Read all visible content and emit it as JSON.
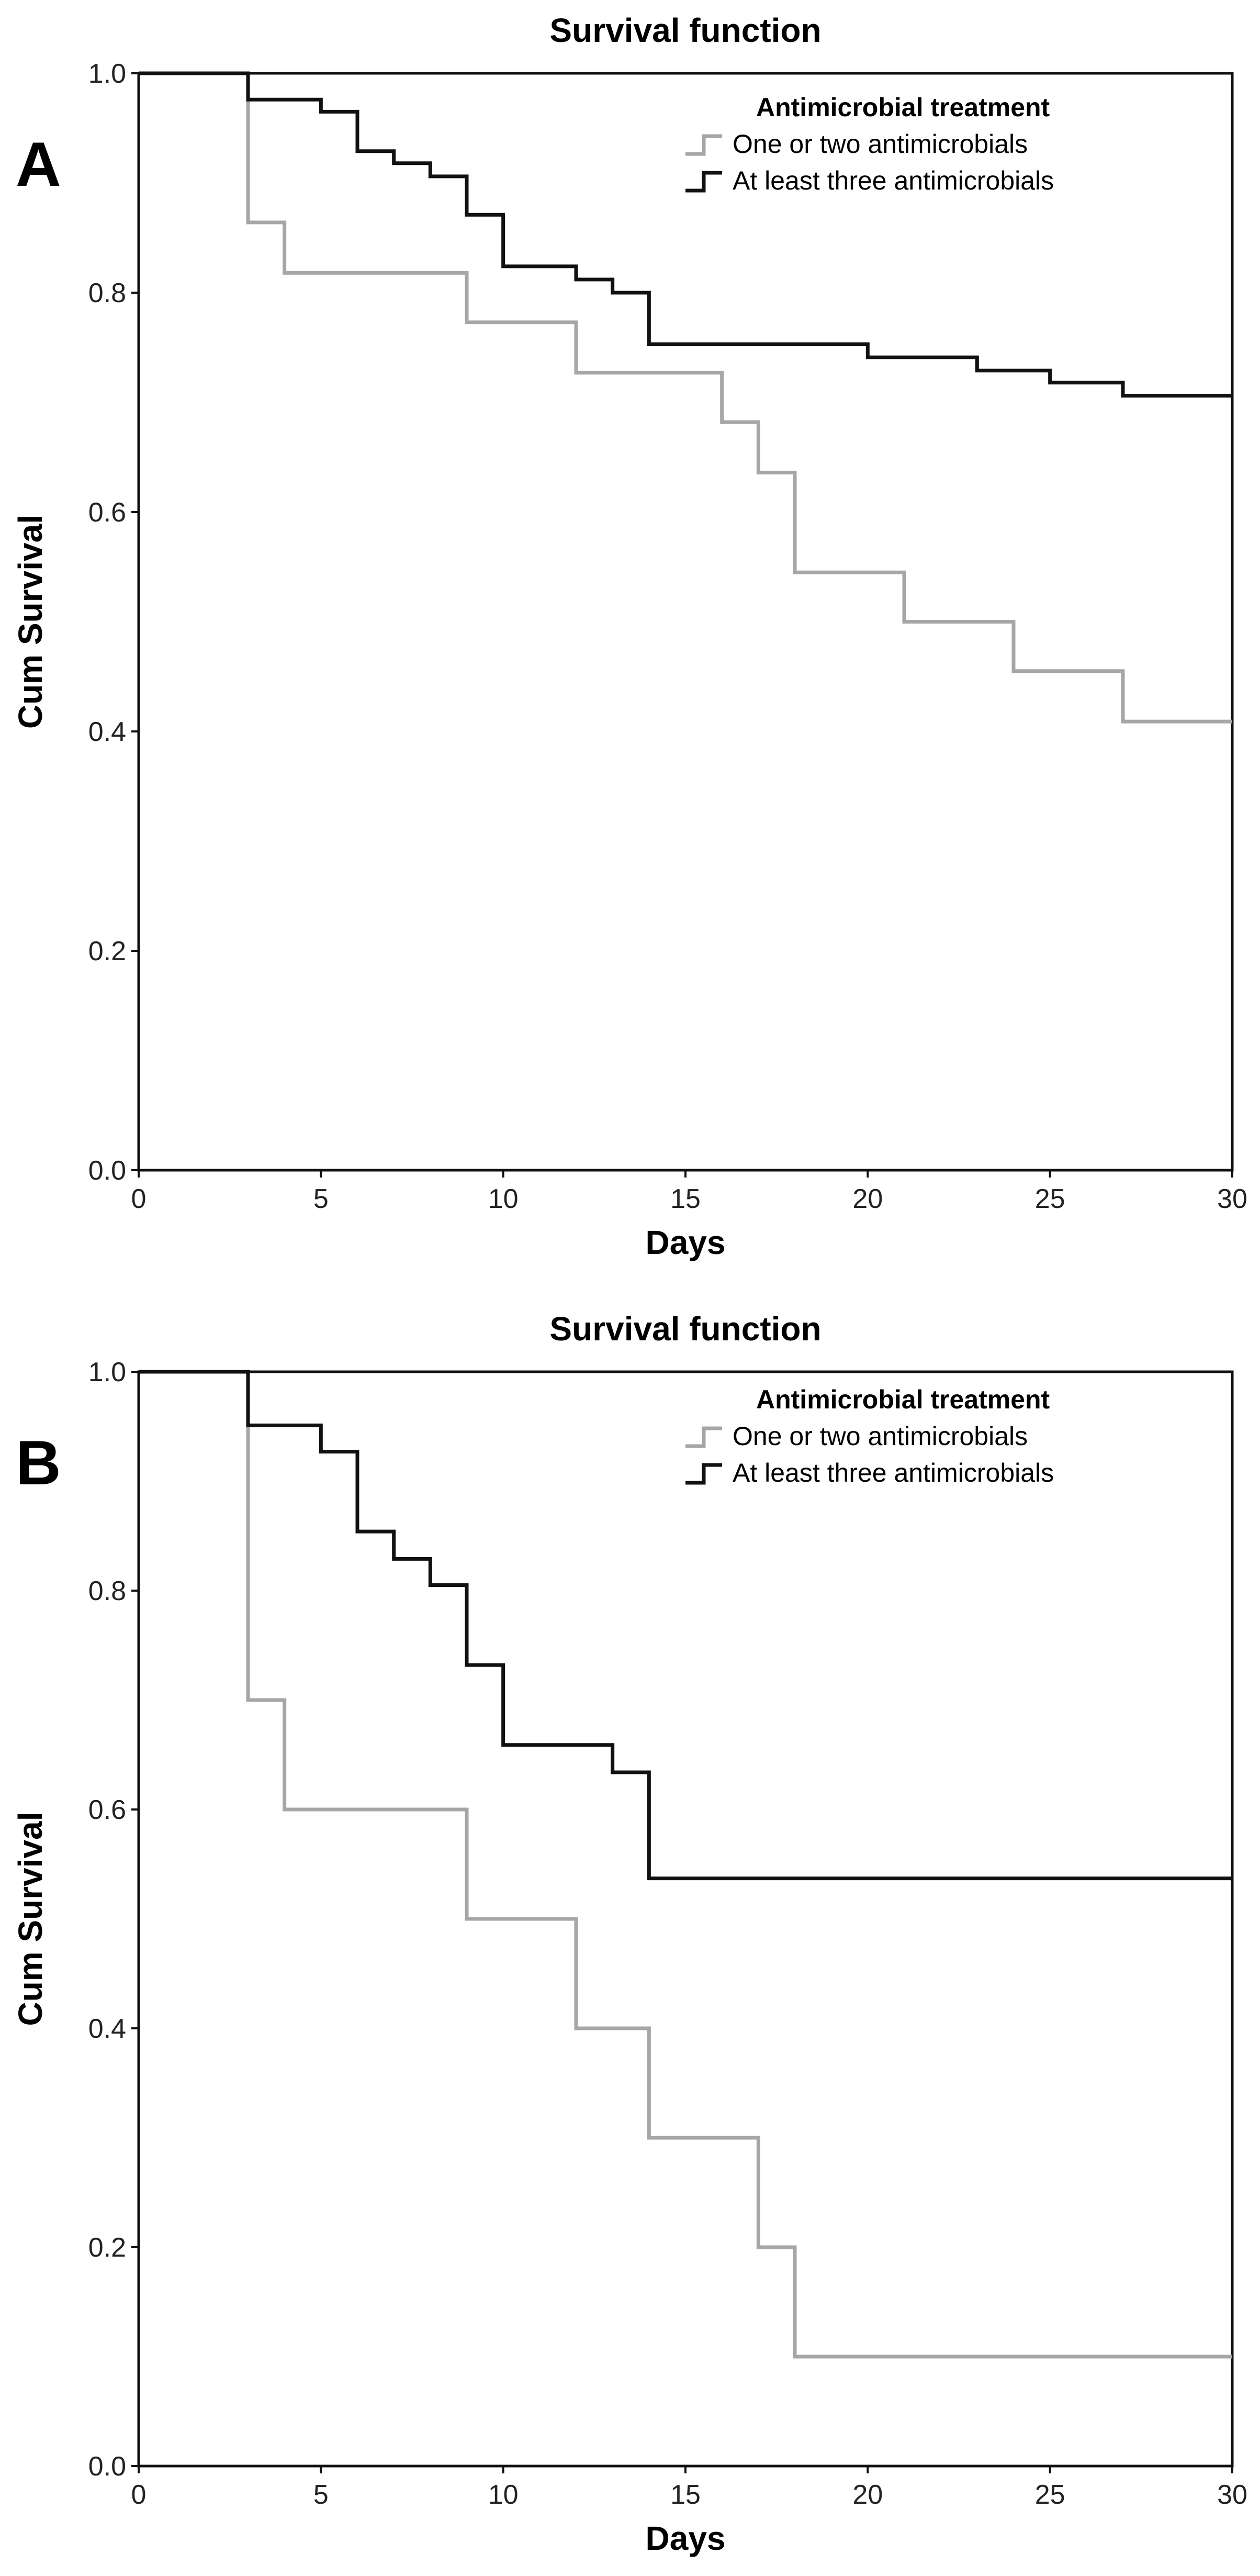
{
  "chart_data": [
    {
      "type": "line",
      "step": true,
      "panel_label": "A",
      "title": "Survival function",
      "xlabel": "Days",
      "ylabel": "Cum Survival",
      "xlim": [
        0,
        30
      ],
      "ylim": [
        0,
        1.0
      ],
      "x_ticks": [
        "0",
        "5",
        "10",
        "15",
        "20",
        "25",
        "30"
      ],
      "y_ticks": [
        "0.0",
        "0.2",
        "0.4",
        "0.6",
        "0.8",
        "1.0"
      ],
      "grid": false,
      "legend": {
        "title": "Antimicrobial treatment",
        "position": "top-right",
        "entries": [
          "One or two antimicrobials",
          "At least three antimicrobials"
        ]
      },
      "series": [
        {
          "name": "One or two antimicrobials",
          "color": "#a6a6a6",
          "x": [
            0,
            3,
            4,
            9,
            12,
            16,
            17,
            18,
            21,
            24,
            27,
            30
          ],
          "y": [
            1.0,
            0.864,
            0.818,
            0.773,
            0.727,
            0.682,
            0.636,
            0.545,
            0.5,
            0.455,
            0.409,
            0.409
          ]
        },
        {
          "name": "At least three antimicrobials",
          "color": "#111111",
          "x": [
            0,
            3,
            5,
            6,
            7,
            8,
            9,
            10,
            12,
            13,
            14,
            20,
            23,
            25,
            27,
            30
          ],
          "y": [
            1.0,
            0.976,
            0.965,
            0.929,
            0.918,
            0.906,
            0.871,
            0.824,
            0.812,
            0.8,
            0.753,
            0.741,
            0.729,
            0.718,
            0.706,
            0.706
          ]
        }
      ]
    },
    {
      "type": "line",
      "step": true,
      "panel_label": "B",
      "title": "Survival function",
      "xlabel": "Days",
      "ylabel": "Cum Survival",
      "xlim": [
        0,
        30
      ],
      "ylim": [
        0,
        1.0
      ],
      "x_ticks": [
        "0",
        "5",
        "10",
        "15",
        "20",
        "25",
        "30"
      ],
      "y_ticks": [
        "0.0",
        "0.2",
        "0.4",
        "0.6",
        "0.8",
        "1.0"
      ],
      "grid": false,
      "legend": {
        "title": "Antimicrobial treatment",
        "position": "top-right",
        "entries": [
          "One or two antimicrobials",
          "At least three antimicrobials"
        ]
      },
      "series": [
        {
          "name": "One or two antimicrobials",
          "color": "#a6a6a6",
          "x": [
            0,
            3,
            4,
            9,
            12,
            14,
            17,
            18,
            30
          ],
          "y": [
            1.0,
            0.7,
            0.6,
            0.5,
            0.4,
            0.3,
            0.2,
            0.1,
            0.1
          ]
        },
        {
          "name": "At least three antimicrobials",
          "color": "#111111",
          "x": [
            0,
            3,
            5,
            6,
            7,
            8,
            9,
            10,
            13,
            14,
            30
          ],
          "y": [
            1.0,
            0.951,
            0.927,
            0.854,
            0.829,
            0.805,
            0.732,
            0.659,
            0.634,
            0.537,
            0.537
          ]
        }
      ]
    }
  ]
}
